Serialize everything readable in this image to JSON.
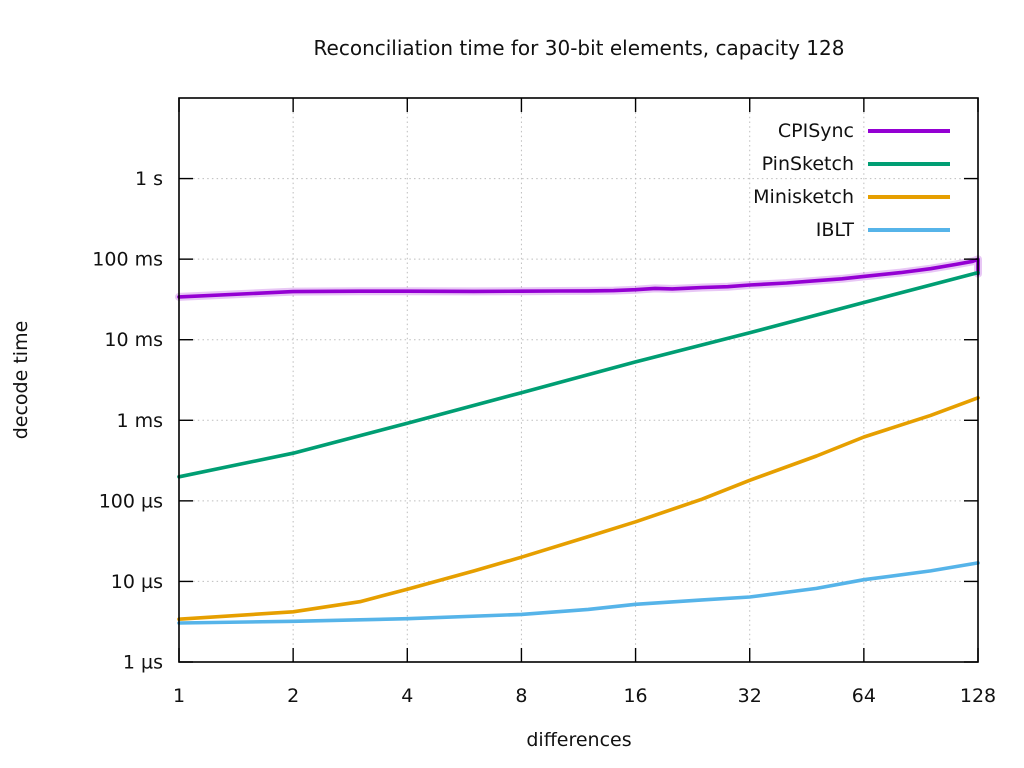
{
  "chart_data": {
    "type": "line",
    "title": "Reconciliation time for 30-bit elements, capacity 128",
    "xlabel": "differences",
    "ylabel": "decode time",
    "xscale": "log2",
    "yscale": "log10",
    "xlim": [
      1,
      128
    ],
    "ylim": [
      1e-06,
      10
    ],
    "grid": true,
    "legend_position": "top-right-inside",
    "x_ticks": [
      {
        "v": 1,
        "label": "1"
      },
      {
        "v": 2,
        "label": "2"
      },
      {
        "v": 4,
        "label": "4"
      },
      {
        "v": 8,
        "label": "8"
      },
      {
        "v": 16,
        "label": "16"
      },
      {
        "v": 32,
        "label": "32"
      },
      {
        "v": 64,
        "label": "64"
      },
      {
        "v": 128,
        "label": "128"
      }
    ],
    "y_ticks": [
      {
        "v": 1e-06,
        "label": "1 µs"
      },
      {
        "v": 1e-05,
        "label": "10 µs"
      },
      {
        "v": 0.0001,
        "label": "100 µs"
      },
      {
        "v": 0.001,
        "label": "1 ms"
      },
      {
        "v": 0.01,
        "label": "10 ms"
      },
      {
        "v": 0.1,
        "label": "100 ms"
      },
      {
        "v": 1,
        "label": "1 s"
      }
    ],
    "y_unit": "seconds",
    "series": [
      {
        "name": "CPISync",
        "color": "#9400d3",
        "halo": true,
        "points": [
          [
            1,
            0.034
          ],
          [
            2,
            0.0395
          ],
          [
            3,
            0.04
          ],
          [
            4,
            0.04
          ],
          [
            6,
            0.0398
          ],
          [
            8,
            0.04
          ],
          [
            10,
            0.0402
          ],
          [
            12,
            0.0403
          ],
          [
            14,
            0.0407
          ],
          [
            16,
            0.0418
          ],
          [
            18,
            0.0434
          ],
          [
            20,
            0.0427
          ],
          [
            22,
            0.0436
          ],
          [
            24,
            0.0445
          ],
          [
            28,
            0.0455
          ],
          [
            32,
            0.0478
          ],
          [
            40,
            0.0505
          ],
          [
            48,
            0.054
          ],
          [
            56,
            0.057
          ],
          [
            64,
            0.061
          ],
          [
            80,
            0.068
          ],
          [
            96,
            0.076
          ],
          [
            112,
            0.086
          ],
          [
            124,
            0.094
          ],
          [
            128,
            0.0995
          ],
          [
            128,
            0.066
          ]
        ]
      },
      {
        "name": "PinSketch",
        "color": "#009e73",
        "halo": false,
        "points": [
          [
            1,
            0.000199
          ],
          [
            2,
            0.00039
          ],
          [
            4,
            0.00092
          ],
          [
            8,
            0.0022
          ],
          [
            16,
            0.0053
          ],
          [
            32,
            0.0122
          ],
          [
            64,
            0.029
          ],
          [
            128,
            0.068
          ]
        ]
      },
      {
        "name": "Minisketch",
        "color": "#e69f00",
        "halo": false,
        "points": [
          [
            1,
            3.4e-06
          ],
          [
            2,
            4.2e-06
          ],
          [
            3,
            5.6e-06
          ],
          [
            4,
            8e-06
          ],
          [
            6,
            1.35e-05
          ],
          [
            8,
            2e-05
          ],
          [
            12,
            3.6e-05
          ],
          [
            16,
            5.5e-05
          ],
          [
            24,
            0.000105
          ],
          [
            32,
            0.00018
          ],
          [
            48,
            0.00036
          ],
          [
            64,
            0.00062
          ],
          [
            96,
            0.00115
          ],
          [
            128,
            0.0019
          ]
        ]
      },
      {
        "name": "IBLT",
        "color": "#56b4e9",
        "halo": false,
        "points": [
          [
            1,
            3.05e-06
          ],
          [
            2,
            3.2e-06
          ],
          [
            4,
            3.45e-06
          ],
          [
            8,
            3.9e-06
          ],
          [
            12,
            4.5e-06
          ],
          [
            16,
            5.2e-06
          ],
          [
            24,
            5.9e-06
          ],
          [
            32,
            6.4e-06
          ],
          [
            48,
            8.2e-06
          ],
          [
            64,
            1.05e-05
          ],
          [
            96,
            1.35e-05
          ],
          [
            128,
            1.7e-05
          ]
        ]
      }
    ]
  }
}
